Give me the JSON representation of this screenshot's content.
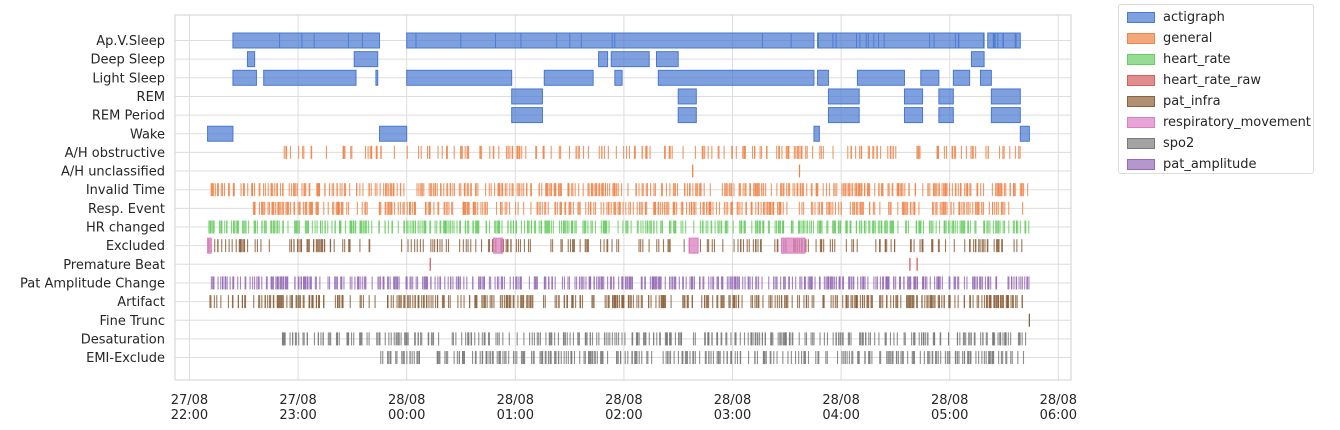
{
  "chart_data": {
    "type": "timeline",
    "title": "",
    "xlabel": "",
    "ylabel": "",
    "grid": true,
    "legend_position": "outside-top-right",
    "x_ticks": [
      {
        "time": "2023-08-27T22:00",
        "label": [
          "27/08",
          "22:00"
        ]
      },
      {
        "time": "2023-08-27T23:00",
        "label": [
          "27/08",
          "23:00"
        ]
      },
      {
        "time": "2023-08-28T00:00",
        "label": [
          "28/08",
          "00:00"
        ]
      },
      {
        "time": "2023-08-28T01:00",
        "label": [
          "28/08",
          "01:00"
        ]
      },
      {
        "time": "2023-08-28T02:00",
        "label": [
          "28/08",
          "02:00"
        ]
      },
      {
        "time": "2023-08-28T03:00",
        "label": [
          "28/08",
          "03:00"
        ]
      },
      {
        "time": "2023-08-28T04:00",
        "label": [
          "28/08",
          "04:00"
        ]
      },
      {
        "time": "2023-08-28T05:00",
        "label": [
          "28/08",
          "05:00"
        ]
      },
      {
        "time": "2023-08-28T06:00",
        "label": [
          "28/08",
          "06:00"
        ]
      }
    ],
    "xlim": [
      "2023-08-27T21:52",
      "2023-08-28T06:07"
    ],
    "categories": [
      "Ap.V.Sleep",
      "Deep Sleep",
      "Light Sleep",
      "REM",
      "REM Period",
      "Wake",
      "A/H obstructive",
      "A/H unclassified",
      "Invalid Time",
      "Resp. Event",
      "HR changed",
      "Excluded",
      "Premature Beat",
      "Pat Amplitude Change",
      "Artifact",
      "Fine Trunc",
      "Desaturation",
      "EMI-Exclude"
    ],
    "series": [
      {
        "name": "actigraph",
        "color": "#4878d0"
      },
      {
        "name": "general",
        "color": "#ee854a"
      },
      {
        "name": "heart_rate",
        "color": "#6acc64"
      },
      {
        "name": "heart_rate_raw",
        "color": "#d65f5f"
      },
      {
        "name": "pat_infra",
        "color": "#956cb4"
      },
      {
        "name": "respiratory_movement",
        "color": "#d5bb67"
      },
      {
        "name": "spo2",
        "color": "#82c6e2"
      },
      {
        "name": "pat_amplitude",
        "color": "#8c613c"
      }
    ],
    "series_colors": {
      "actigraph": "#4878d0",
      "general": "#ee854a",
      "heart_rate": "#6acc64",
      "heart_rate_raw": "#d65f5f",
      "pat_infra": "#8c613c",
      "respiratory_movement": "#dc7ec0",
      "spo2": "#797979",
      "pat_amplitude": "#956cb4"
    },
    "events": {
      "Ap.V.Sleep": {
        "source": "actigraph",
        "intervals": [
          [
            "22:24",
            "23:45"
          ],
          [
            "00:00",
            "03:45"
          ],
          [
            "03:47",
            "05:19"
          ],
          [
            "05:21",
            "05:39"
          ]
        ]
      },
      "Deep Sleep": {
        "source": "actigraph",
        "intervals": [
          [
            "22:32",
            "22:36"
          ],
          [
            "23:31",
            "23:44"
          ],
          [
            "01:46",
            "01:51"
          ],
          [
            "01:53",
            "02:14"
          ],
          [
            "02:18",
            "02:30"
          ],
          [
            "05:12",
            "05:19"
          ]
        ]
      },
      "Light Sleep": {
        "source": "actigraph",
        "intervals": [
          [
            "22:24",
            "22:37"
          ],
          [
            "22:41",
            "23:32"
          ],
          [
            "23:43",
            "23:44"
          ],
          [
            "00:00",
            "00:58"
          ],
          [
            "01:16",
            "01:43"
          ],
          [
            "01:55",
            "01:59"
          ],
          [
            "02:19",
            "03:45"
          ],
          [
            "03:47",
            "03:53"
          ],
          [
            "04:09",
            "04:35"
          ],
          [
            "04:44",
            "04:54"
          ],
          [
            "05:02",
            "05:11"
          ],
          [
            "05:17",
            "05:23"
          ]
        ]
      },
      "REM": {
        "source": "actigraph",
        "intervals": [
          [
            "00:58",
            "01:15"
          ],
          [
            "02:30",
            "02:40"
          ],
          [
            "03:53",
            "04:10"
          ],
          [
            "04:35",
            "04:45"
          ],
          [
            "04:54",
            "05:02"
          ],
          [
            "05:23",
            "05:39"
          ]
        ]
      },
      "REM Period": {
        "source": "actigraph",
        "intervals": [
          [
            "00:58",
            "01:15"
          ],
          [
            "02:30",
            "02:40"
          ],
          [
            "03:53",
            "04:10"
          ],
          [
            "04:35",
            "04:45"
          ],
          [
            "04:54",
            "05:02"
          ],
          [
            "05:23",
            "05:39"
          ]
        ]
      },
      "Wake": {
        "source": "actigraph",
        "intervals": [
          [
            "22:10",
            "22:24"
          ],
          [
            "23:45",
            "00:00"
          ],
          [
            "03:45",
            "03:48"
          ],
          [
            "05:39",
            "05:44"
          ]
        ]
      },
      "A/H obstructive": {
        "source": "general",
        "range": [
          "22:50",
          "05:40"
        ],
        "density": 0.5
      },
      "A/H unclassified": {
        "source": "general",
        "times": [
          "02:38",
          "03:37"
        ]
      },
      "Invalid Time": {
        "source": "general",
        "range": [
          "22:10",
          "05:44"
        ],
        "density": 0.9
      },
      "Resp. Event": {
        "source": "general",
        "range": [
          "22:35",
          "05:42"
        ],
        "density": 0.9
      },
      "HR changed": {
        "source": "heart_rate",
        "range": [
          "22:10",
          "05:44"
        ],
        "density": 1.0
      },
      "Excluded": {
        "source": "pat_infra",
        "range": [
          "22:10",
          "05:42"
        ],
        "density": 0.5,
        "highlight_intervals": [
          [
            "22:10",
            "22:12"
          ],
          [
            "00:48",
            "00:53"
          ],
          [
            "02:36",
            "02:41"
          ],
          [
            "03:27",
            "03:40"
          ]
        ]
      },
      "Premature Beat": {
        "source": "heart_rate_raw",
        "times": [
          "00:13",
          "04:38",
          "04:42"
        ]
      },
      "Pat Amplitude Change": {
        "source": "pat_amplitude",
        "range": [
          "22:12",
          "05:44"
        ],
        "density": 1.0
      },
      "Artifact": {
        "source": "pat_infra",
        "range": [
          "22:10",
          "05:42"
        ],
        "density": 0.9
      },
      "Fine Trunc": {
        "source": "pat_infra",
        "times": [
          "05:44"
        ]
      },
      "Desaturation": {
        "source": "spo2",
        "range": [
          "22:50",
          "05:42"
        ],
        "density": 0.8
      },
      "EMI-Exclude": {
        "source": "spo2",
        "range": [
          "23:45",
          "05:42"
        ],
        "density": 0.8
      }
    }
  }
}
